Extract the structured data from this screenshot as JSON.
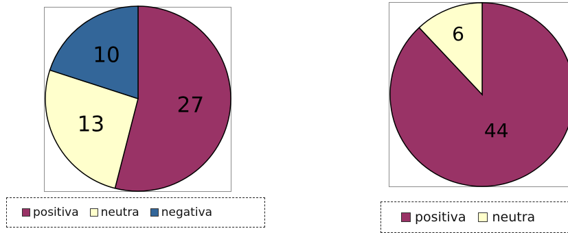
{
  "colors": {
    "positiva": "#993366",
    "neutra": "#ffffcc",
    "negativa": "#336699"
  },
  "chart_data": [
    {
      "type": "pie",
      "title": "",
      "categories": [
        "positiva",
        "neutra",
        "negativa"
      ],
      "values": [
        27,
        13,
        10
      ],
      "data_labels": [
        "27",
        "13",
        "10"
      ],
      "start_angle": "12 o'clock, clockwise",
      "legend": {
        "position": "bottom",
        "entries": [
          "positiva",
          "neutra",
          "negativa"
        ]
      }
    },
    {
      "type": "pie",
      "title": "",
      "categories": [
        "positiva",
        "neutra"
      ],
      "values": [
        44,
        6
      ],
      "data_labels": [
        "44",
        "6"
      ],
      "start_angle": "12 o'clock, clockwise",
      "legend": {
        "position": "bottom",
        "entries": [
          "positiva",
          "neutra"
        ]
      }
    }
  ]
}
